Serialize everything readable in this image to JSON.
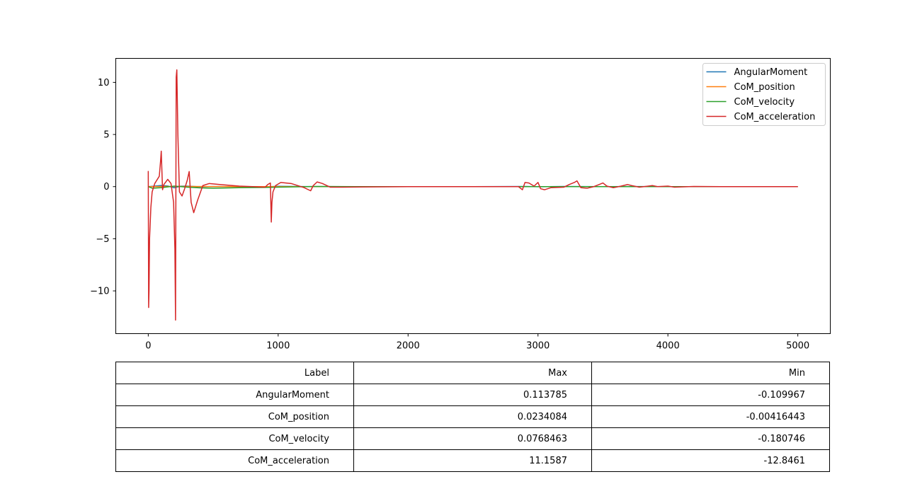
{
  "chart_data": {
    "type": "line",
    "title": "",
    "xlabel": "",
    "ylabel": "",
    "xlim": [
      -250,
      5250
    ],
    "ylim": [
      -14.1,
      12.3
    ],
    "xticks": [
      0,
      1000,
      2000,
      3000,
      4000,
      5000
    ],
    "yticks": [
      -10,
      -5,
      0,
      5,
      10
    ],
    "xtick_labels": [
      "0",
      "1000",
      "2000",
      "3000",
      "4000",
      "5000"
    ],
    "ytick_labels": [
      "−10",
      "−5",
      "0",
      "5",
      "10"
    ],
    "grid": false,
    "legend_position": "top-right",
    "series": [
      {
        "name": "AngularMoment",
        "color": "#1f77b4",
        "x": [
          0,
          50,
          100,
          150,
          200,
          250,
          300,
          400,
          500,
          700,
          900,
          1000,
          1200,
          1500,
          2000,
          2500,
          2900,
          3000,
          3200,
          3500,
          3800,
          4000,
          4500,
          5000
        ],
        "y": [
          0,
          0.05,
          0.11,
          0.06,
          -0.11,
          0.04,
          0.05,
          -0.02,
          0.01,
          0.0,
          -0.02,
          0.03,
          0.01,
          0.0,
          0.0,
          0.0,
          0.02,
          -0.01,
          0.02,
          0.0,
          0.01,
          0.0,
          0.0,
          0.0
        ]
      },
      {
        "name": "CoM_position",
        "color": "#ff7f0e",
        "x": [
          0,
          200,
          500,
          1000,
          2000,
          3000,
          4000,
          5000
        ],
        "y": [
          0,
          0.02,
          0.01,
          0.0,
          0.0,
          0.0,
          0.0,
          0.0
        ]
      },
      {
        "name": "CoM_velocity",
        "color": "#2ca02c",
        "x": [
          0,
          30,
          100,
          200,
          300,
          400,
          500,
          700,
          900,
          1000,
          1300,
          1600,
          2000,
          3000,
          4000,
          5000
        ],
        "y": [
          0,
          -0.15,
          -0.1,
          0.05,
          -0.05,
          -0.12,
          -0.15,
          -0.1,
          -0.08,
          -0.05,
          0.02,
          0.0,
          0.0,
          0.0,
          0.0,
          0.0
        ]
      },
      {
        "name": "CoM_acceleration",
        "color": "#d62728",
        "x": [
          0,
          3,
          6,
          10,
          20,
          30,
          50,
          70,
          85,
          95,
          100,
          110,
          120,
          150,
          175,
          195,
          205,
          210,
          215,
          220,
          228,
          240,
          260,
          280,
          300,
          315,
          330,
          350,
          380,
          420,
          470,
          550,
          700,
          900,
          920,
          940,
          947,
          952,
          960,
          980,
          1020,
          1100,
          1200,
          1250,
          1270,
          1300,
          1340,
          1400,
          1500,
          2000,
          2500,
          2850,
          2880,
          2900,
          2930,
          2970,
          3000,
          3020,
          3050,
          3100,
          3200,
          3240,
          3280,
          3300,
          3330,
          3380,
          3430,
          3470,
          3500,
          3530,
          3580,
          3640,
          3690,
          3720,
          3780,
          3850,
          3880,
          3920,
          4000,
          4050,
          4200,
          4400,
          5000
        ],
        "y": [
          1.5,
          -11.6,
          -10,
          -5,
          -2,
          -0.5,
          0.3,
          0.7,
          1.0,
          2.5,
          3.4,
          -0.3,
          0.2,
          0.7,
          0.3,
          -1.5,
          -6,
          -12.8,
          10.5,
          11.2,
          5,
          -0.5,
          -0.9,
          -0.2,
          0.6,
          1.45,
          -1.5,
          -2.5,
          -1.3,
          0.1,
          0.3,
          0.2,
          0.05,
          -0.05,
          0.2,
          0.35,
          -3.4,
          -1.5,
          -0.5,
          0.1,
          0.4,
          0.3,
          -0.1,
          -0.4,
          0.1,
          0.45,
          0.3,
          -0.05,
          -0.05,
          0.0,
          0.0,
          0.0,
          -0.3,
          0.4,
          0.35,
          0.05,
          0.4,
          -0.2,
          -0.3,
          -0.1,
          -0.05,
          0.2,
          0.4,
          0.55,
          -0.1,
          -0.15,
          0.0,
          0.2,
          0.35,
          0.05,
          -0.1,
          0.05,
          0.2,
          0.1,
          -0.05,
          0.05,
          0.1,
          0.0,
          0.05,
          -0.05,
          0.02,
          0.0,
          0.0
        ]
      }
    ]
  },
  "table": {
    "headers": [
      "Label",
      "Max",
      "Min"
    ],
    "rows": [
      [
        "AngularMoment",
        "0.113785",
        "-0.109967"
      ],
      [
        "CoM_position",
        "0.0234084",
        "-0.00416443"
      ],
      [
        "CoM_velocity",
        "0.0768463",
        "-0.180746"
      ],
      [
        "CoM_acceleration",
        "11.1587",
        "-12.8461"
      ]
    ]
  }
}
